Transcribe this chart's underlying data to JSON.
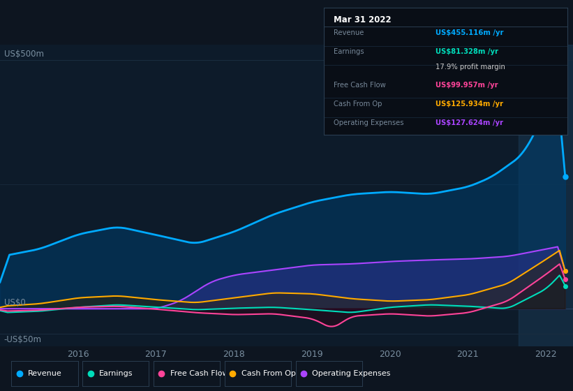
{
  "bg_color": "#0d1520",
  "chart_bg": "#0d1b2a",
  "grid_line_color": "#1a2d40",
  "zero_line_color": "#2a4060",
  "tick_color": "#7a8fa0",
  "ylim": [
    -75,
    530
  ],
  "xlim_start": 2015.0,
  "xlim_end": 2022.35,
  "xticks": [
    2016,
    2017,
    2018,
    2019,
    2020,
    2021,
    2022
  ],
  "revenue_color": "#00aaff",
  "revenue_fill": "#003d6b",
  "earnings_color": "#00ddbb",
  "earnings_fill": "#003322",
  "fcf_color": "#ff4499",
  "fcf_fill": "#330011",
  "cashop_color": "#ffaa00",
  "cashop_fill": "#332200",
  "opex_color": "#aa44ff",
  "opex_fill": "#5522aa",
  "highlight_start": 2021.65,
  "highlight_color": "#1a3a55",
  "legend_items": [
    {
      "label": "Revenue",
      "color": "#00aaff"
    },
    {
      "label": "Earnings",
      "color": "#00ddbb"
    },
    {
      "label": "Free Cash Flow",
      "color": "#ff4499"
    },
    {
      "label": "Cash From Op",
      "color": "#ffaa00"
    },
    {
      "label": "Operating Expenses",
      "color": "#aa44ff"
    }
  ],
  "tooltip_title": "Mar 31 2022",
  "tooltip_rows": [
    {
      "label": "Revenue",
      "value": "US$455.116m /yr",
      "color": "#00aaff"
    },
    {
      "label": "Earnings",
      "value": "US$81.328m /yr",
      "color": "#00ddbb"
    },
    {
      "label": "",
      "value": "17.9% profit margin",
      "color": "#cccccc"
    },
    {
      "label": "Free Cash Flow",
      "value": "US$99.957m /yr",
      "color": "#ff4499"
    },
    {
      "label": "Cash From Op",
      "value": "US$125.934m /yr",
      "color": "#ffaa00"
    },
    {
      "label": "Operating Expenses",
      "value": "US$127.624m /yr",
      "color": "#aa44ff"
    }
  ],
  "ylabel_500": "US$500m",
  "ylabel_0": "US$0",
  "ylabel_neg50": "-US$50m"
}
